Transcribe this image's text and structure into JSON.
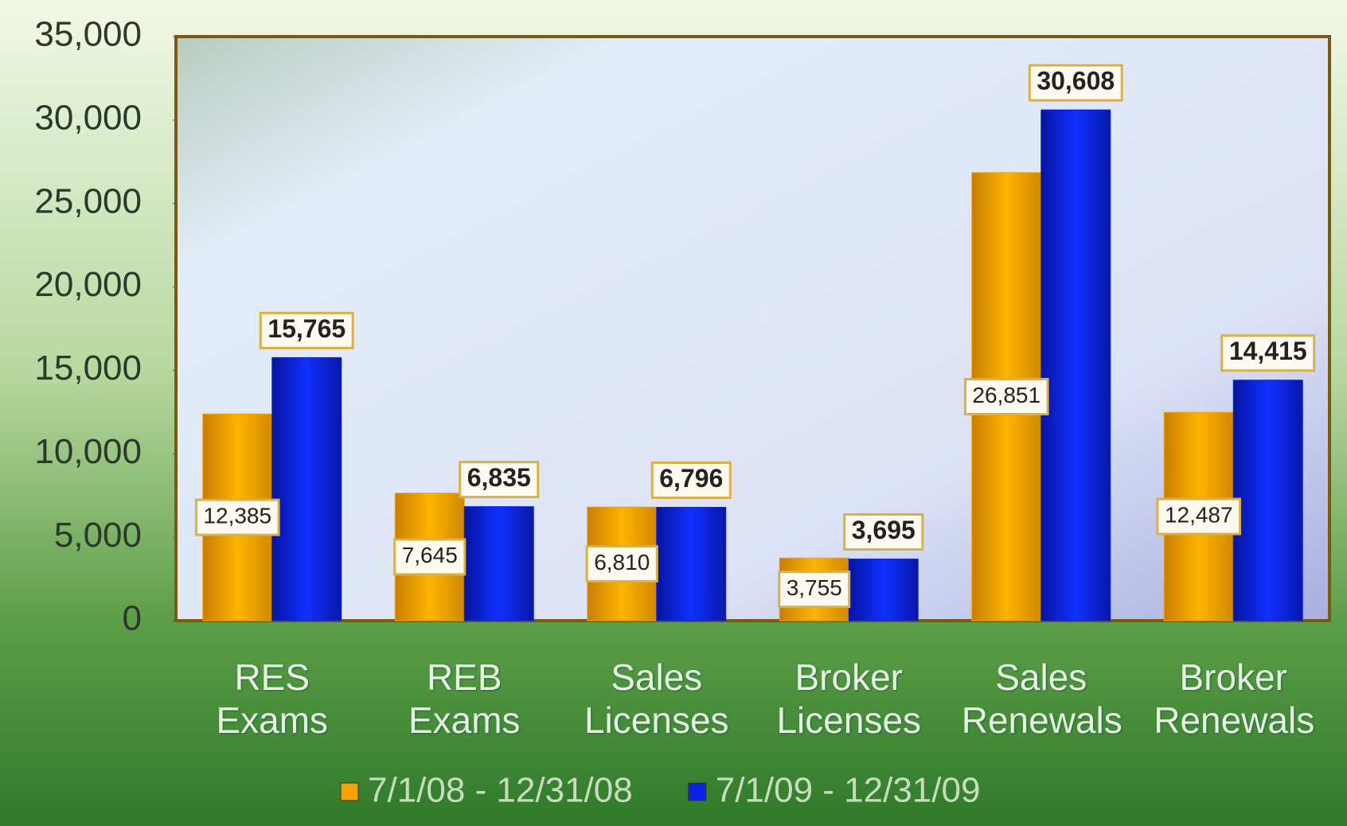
{
  "chart_data": {
    "type": "bar",
    "categories": [
      "RES Exams",
      "REB Exams",
      "Sales Licenses",
      "Broker Licenses",
      "Sales Renewals",
      "Broker Renewals"
    ],
    "series": [
      {
        "name": "7/1/08 - 12/31/08",
        "color": "#f5a300",
        "values": [
          12385,
          7645,
          6810,
          3755,
          26851,
          12487
        ],
        "value_labels": [
          "12,385",
          "7,645",
          "6,810",
          "3,755",
          "26,851",
          "12,487"
        ]
      },
      {
        "name": "7/1/09 - 12/31/09",
        "color": "#0a22e6",
        "values": [
          15765,
          6835,
          6796,
          3695,
          30608,
          14415
        ],
        "value_labels": [
          "15,765",
          "6,835",
          "6,796",
          "3,695",
          "30,608",
          "14,415"
        ]
      }
    ],
    "ylim": [
      0,
      35000
    ],
    "yticks": [
      0,
      {
        "value": 5000,
        "label": "5,000"
      },
      {
        "value": 10000,
        "label": "10,000"
      },
      {
        "value": 15000,
        "label": "15,000"
      },
      {
        "value": 20000,
        "label": "20,000"
      },
      {
        "value": 25000,
        "label": "25,000"
      },
      {
        "value": 30000,
        "label": "30,000"
      },
      {
        "value": 35000,
        "label": "35,000"
      }
    ],
    "legend": "bottom"
  }
}
